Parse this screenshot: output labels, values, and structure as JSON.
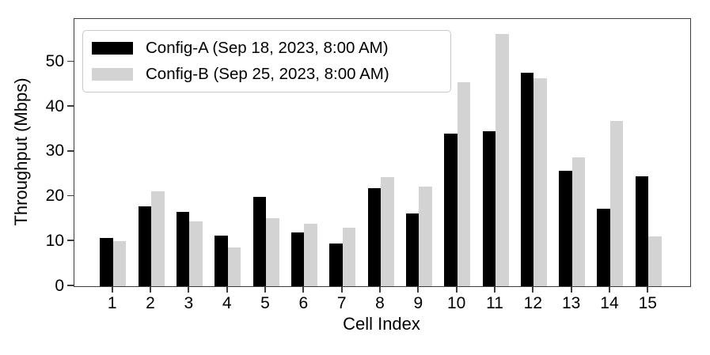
{
  "chart_data": {
    "type": "bar",
    "title": "",
    "xlabel": "Cell Index",
    "ylabel": "Throughput (Mbps)",
    "categories": [
      "1",
      "2",
      "3",
      "4",
      "5",
      "6",
      "7",
      "8",
      "9",
      "10",
      "11",
      "12",
      "13",
      "14",
      "15"
    ],
    "series": [
      {
        "name": "Config-A (Sep 18, 2023, 8:00 AM)",
        "color": "#000000",
        "values": [
          10.8,
          17.8,
          16.6,
          11.3,
          20.0,
          12.0,
          9.5,
          21.9,
          16.3,
          34.0,
          34.6,
          47.6,
          25.7,
          17.2,
          24.5
        ]
      },
      {
        "name": "Config-B (Sep 25, 2023, 8:00 AM)",
        "color": "#d3d3d3",
        "values": [
          10.0,
          21.1,
          14.4,
          8.6,
          15.2,
          13.9,
          13.0,
          24.4,
          22.3,
          45.5,
          56.2,
          46.4,
          28.7,
          36.8,
          11.1
        ]
      }
    ],
    "yticks": [
      0,
      10,
      20,
      30,
      40,
      50
    ],
    "ylim": [
      0,
      59.6
    ],
    "grid": false,
    "legend_position": "upper left",
    "colors": {
      "axis": "#3c3c3c",
      "text": "#000000",
      "legend_border": "#c9c9c9",
      "background": "#ffffff"
    }
  }
}
